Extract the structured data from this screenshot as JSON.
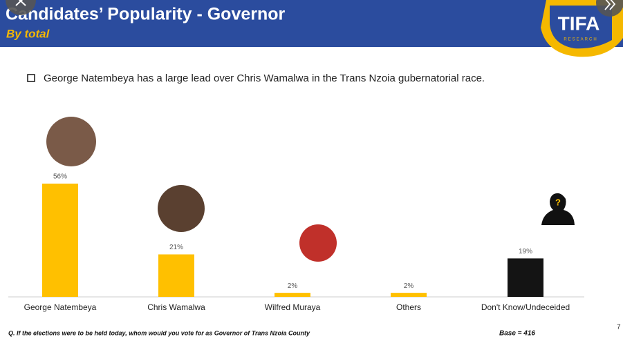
{
  "chart_data": {
    "type": "bar",
    "title": "Candidates’ Popularity - Governor",
    "subtitle": "By total",
    "logo": {
      "name": "TIFA",
      "tagline": "RESEARCH"
    },
    "note": "George Natembeya has a large lead over Chris Wamalwa in the Trans Nzoia  gubernatorial race.",
    "categories": [
      "George Natembeya",
      "Chris Wamalwa",
      "Wilfred Muraya",
      "Others",
      "Don't Know/Undeceided"
    ],
    "values": [
      56,
      21,
      2,
      2,
      19
    ],
    "value_labels": [
      "56%",
      "21%",
      "2%",
      "2%",
      "19%"
    ],
    "colors": [
      "#FFC000",
      "#FFC000",
      "#FFC000",
      "#FFC000",
      "#141414"
    ],
    "question": "Q. If the elections were to be held today, whom would you vote for as Governor of Trans Nzoia County",
    "base": "Base = 416",
    "page_number": "7"
  }
}
